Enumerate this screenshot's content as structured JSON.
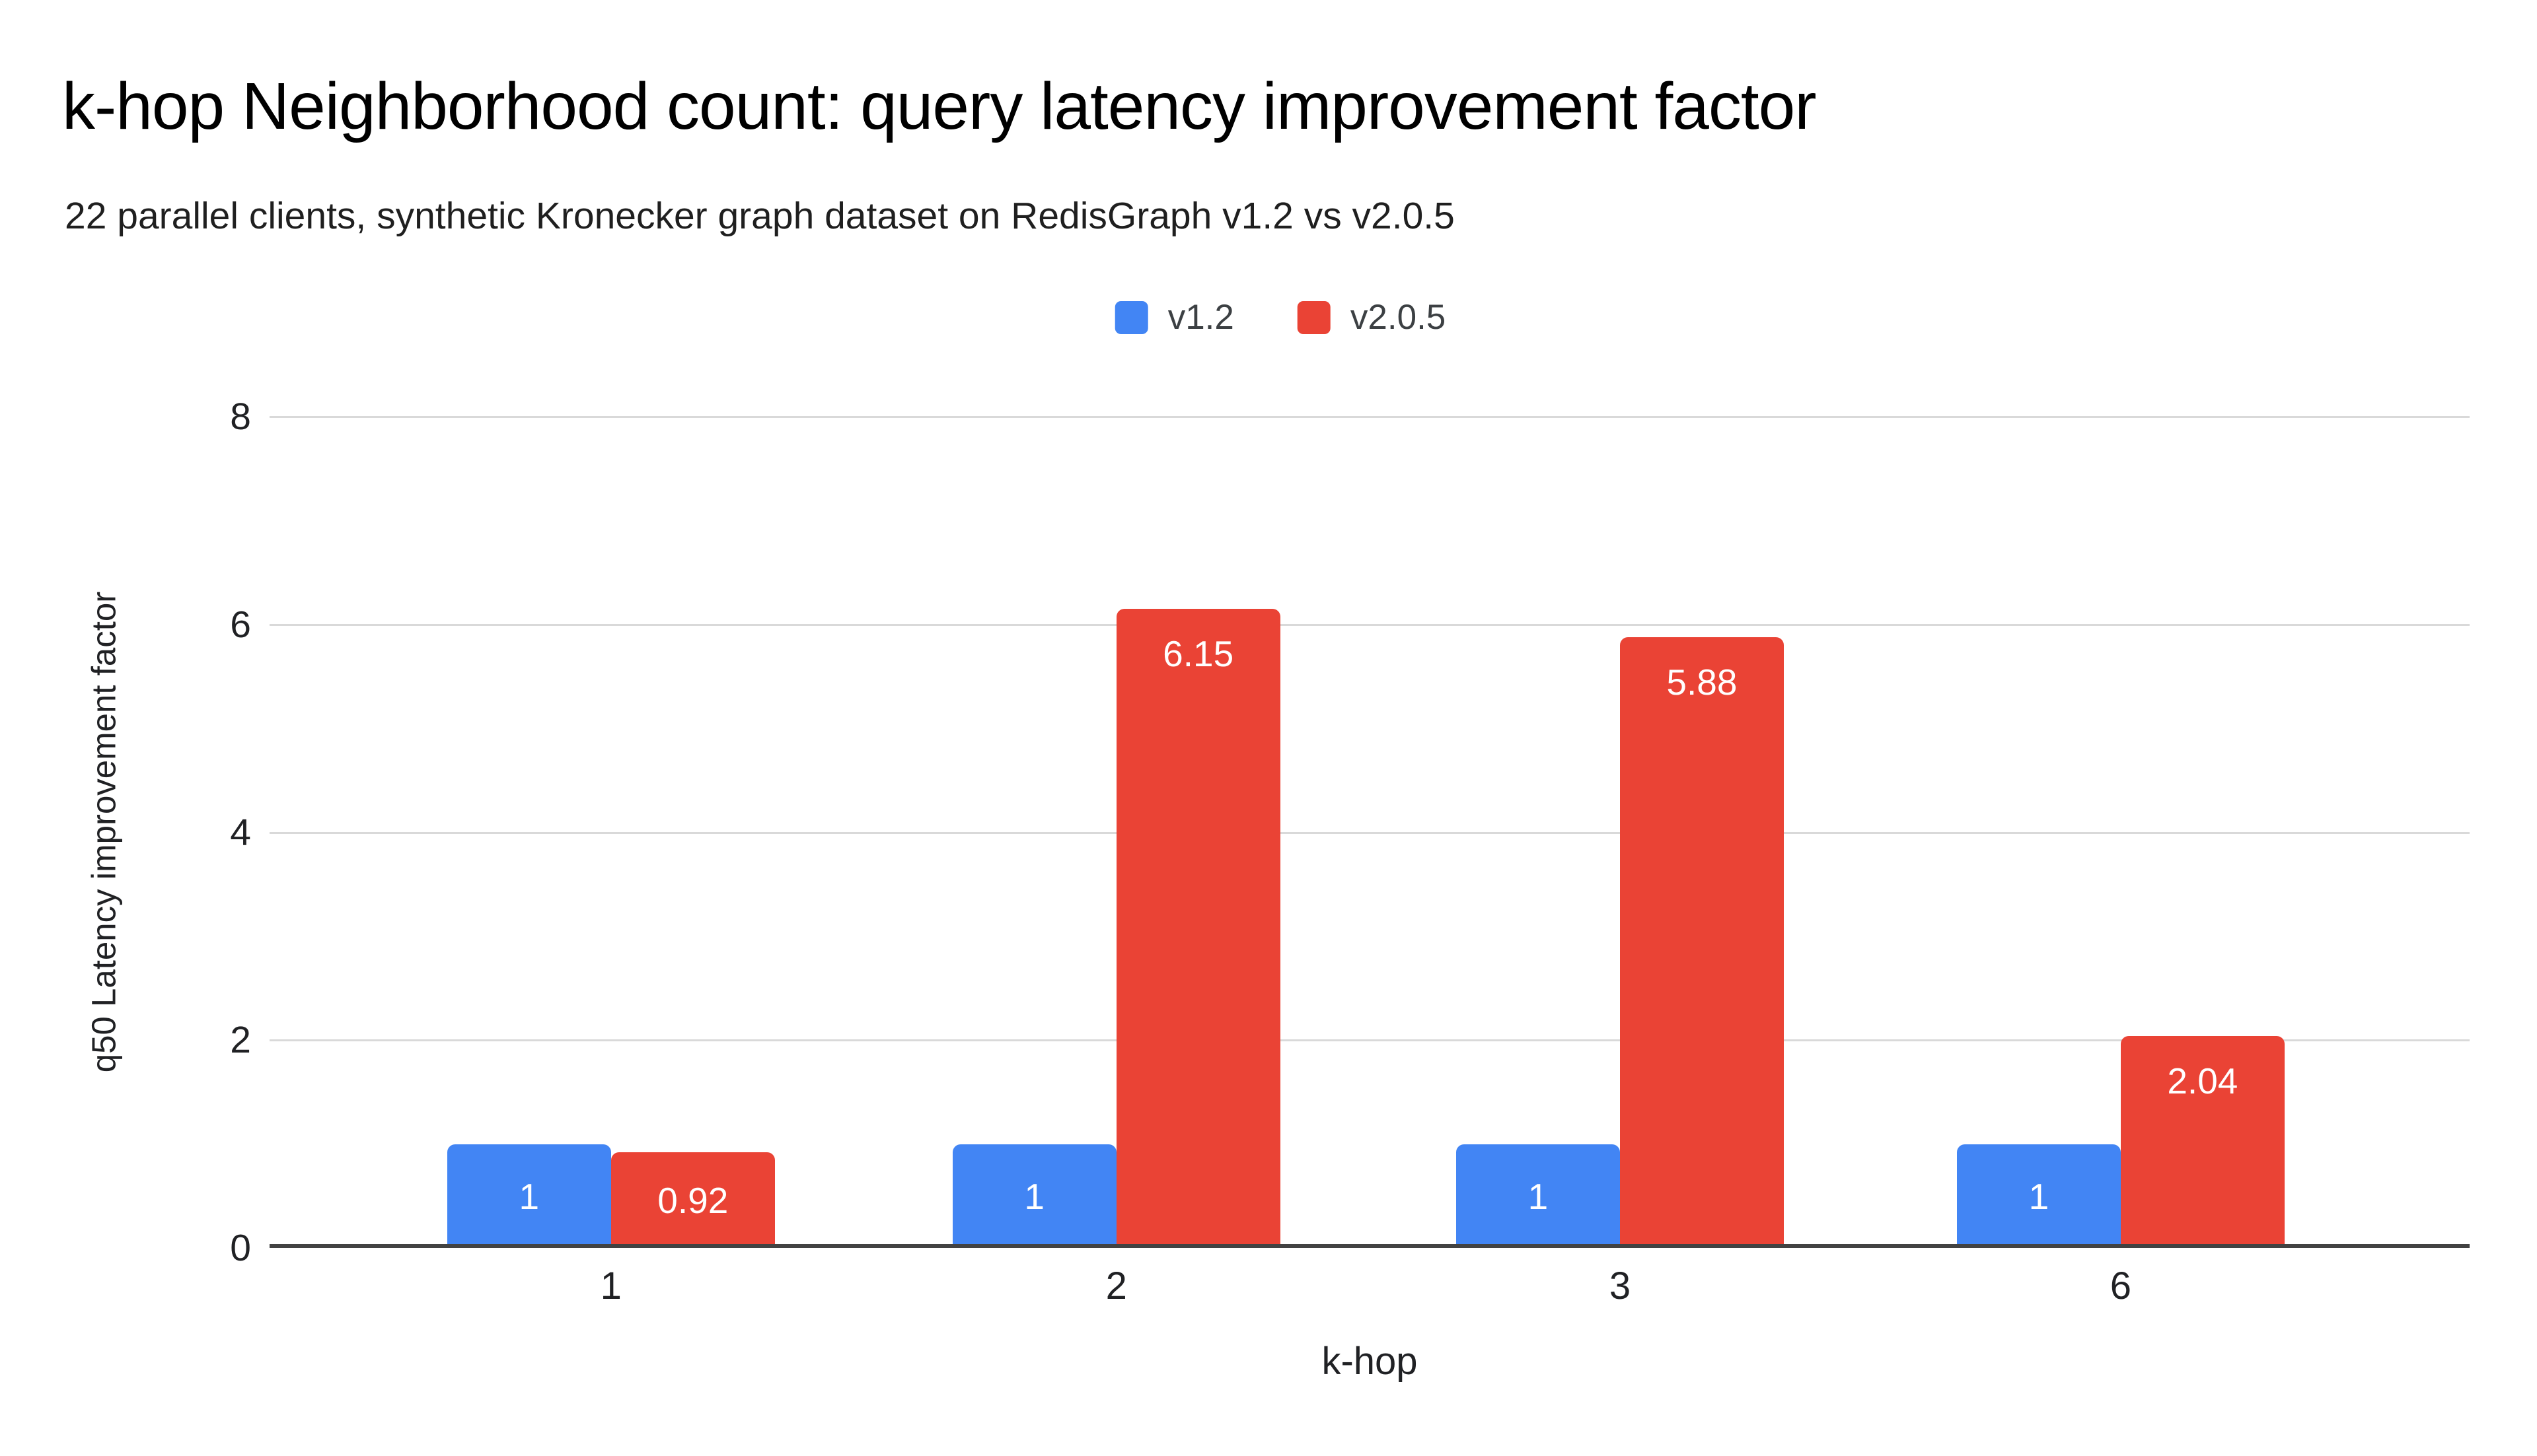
{
  "chart_data": {
    "type": "bar",
    "title": "k-hop Neighborhood count: query latency improvement factor",
    "subtitle": "22 parallel clients, synthetic Kronecker graph dataset on RedisGraph v1.2 vs v2.0.5",
    "xlabel": "k-hop",
    "ylabel": "q50 Latency improvement factor",
    "categories": [
      "1",
      "2",
      "3",
      "6"
    ],
    "series": [
      {
        "name": "v1.2",
        "color": "#4285F4",
        "values": [
          1,
          1,
          1,
          1
        ]
      },
      {
        "name": "v2.0.5",
        "color": "#EA4335",
        "values": [
          0.92,
          6.15,
          5.88,
          2.04
        ]
      }
    ],
    "data_labels": [
      [
        "1",
        "1",
        "1",
        "1"
      ],
      [
        "0.92",
        "6.15",
        "5.88",
        "2.04"
      ]
    ],
    "ylim": [
      0,
      8
    ],
    "yticks": [
      0,
      2,
      4,
      6,
      8
    ],
    "grid": "horizontal",
    "legend_position": "top",
    "colors": {
      "background": "#ffffff",
      "gridline": "#d9d9d9",
      "axis_line": "#424242",
      "label_text": "#ffffff"
    }
  }
}
